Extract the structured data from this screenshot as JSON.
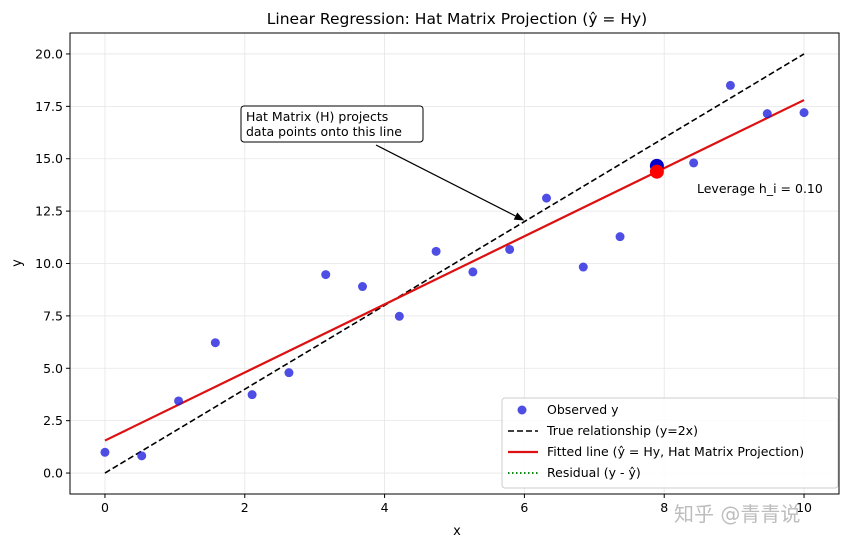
{
  "chart_data": {
    "type": "scatter",
    "title": "Linear Regression: Hat Matrix Projection (ŷ = Hy)",
    "xlabel": "x",
    "ylabel": "y",
    "xlim": [
      -0.5,
      10.5
    ],
    "ylim": [
      -1.0,
      21.0
    ],
    "x_ticks": [
      0,
      2,
      4,
      6,
      8,
      10
    ],
    "x_tick_labels": [
      "0",
      "2",
      "4",
      "6",
      "8",
      "10"
    ],
    "y_ticks": [
      0.0,
      2.5,
      5.0,
      7.5,
      10.0,
      12.5,
      15.0,
      17.5,
      20.0
    ],
    "y_tick_labels": [
      "0.0",
      "2.5",
      "5.0",
      "7.5",
      "10.0",
      "12.5",
      "15.0",
      "17.5",
      "20.0"
    ],
    "grid": true,
    "legend_position": "bottom-right",
    "series": [
      {
        "name": "Observed y",
        "kind": "scatter",
        "color": "#2222dd",
        "x": [
          0.0,
          0.526,
          1.053,
          1.579,
          2.105,
          2.632,
          3.158,
          3.684,
          4.211,
          4.737,
          5.263,
          5.789,
          6.316,
          6.842,
          7.368,
          7.895,
          8.421,
          8.947,
          9.474,
          10.0
        ],
        "y": [
          0.99,
          0.82,
          3.44,
          6.22,
          3.74,
          4.79,
          9.47,
          8.9,
          7.48,
          10.58,
          9.6,
          10.67,
          13.12,
          9.83,
          11.28,
          14.66,
          14.8,
          18.5,
          17.15,
          17.2
        ]
      },
      {
        "name": "True relationship (y=2x)",
        "kind": "line",
        "style": "dashed",
        "color": "#000000",
        "x": [
          0,
          10
        ],
        "y": [
          0,
          20
        ]
      },
      {
        "name": "Fitted line (ŷ = Hy, Hat Matrix Projection)",
        "kind": "line",
        "style": "solid",
        "color": "#dd1111",
        "x": [
          0,
          10
        ],
        "y": [
          1.55,
          17.8
        ]
      },
      {
        "name": "Residual (y - ŷ)",
        "kind": "line",
        "style": "dotted",
        "color": "#118811",
        "x": [],
        "y": []
      }
    ],
    "highlight": {
      "x": 7.895,
      "observed_y": 14.66,
      "fitted_y": 14.38,
      "observed_color": "#0000cc",
      "fitted_color": "#ff0000",
      "label": "Leverage h_i = 0.10"
    },
    "annotation": {
      "lines": [
        "Hat Matrix (H) projects",
        "data points onto this line"
      ],
      "arrow_to": [
        6.0,
        12.05
      ]
    }
  },
  "watermark": "知乎 @青青说"
}
